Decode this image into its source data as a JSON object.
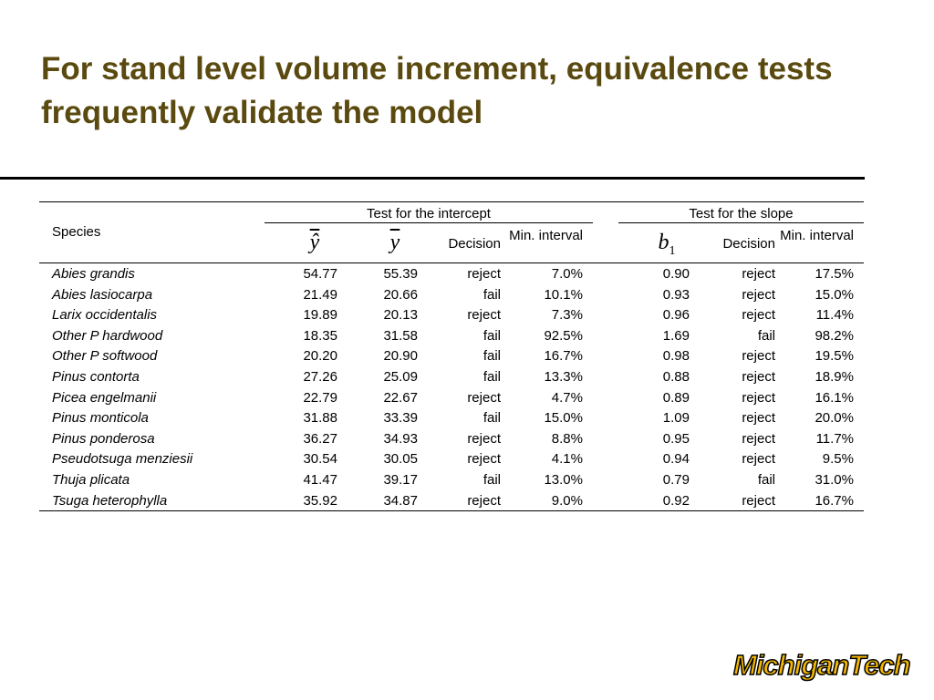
{
  "title": "For stand level volume increment, equivalence tests frequently validate the model",
  "table": {
    "species_header": "Species",
    "groups": [
      "Test for the intercept",
      "Test for the slope"
    ],
    "columns": [
      {
        "symbol": "ŷ"
      },
      {
        "symbol": "y"
      },
      {
        "label": "Decision"
      },
      {
        "label": "Min. interval"
      },
      {
        "symbol": "b",
        "subscript": "1"
      },
      {
        "label": "Decision"
      },
      {
        "label": "Min. interval"
      }
    ],
    "rows": [
      [
        "Abies grandis",
        "54.77",
        "55.39",
        "reject",
        "7.0%",
        "0.90",
        "reject",
        "17.5%"
      ],
      [
        "Abies lasiocarpa",
        "21.49",
        "20.66",
        "fail",
        "10.1%",
        "0.93",
        "reject",
        "15.0%"
      ],
      [
        "Larix occidentalis",
        "19.89",
        "20.13",
        "reject",
        "7.3%",
        "0.96",
        "reject",
        "11.4%"
      ],
      [
        "Other P hardwood",
        "18.35",
        "31.58",
        "fail",
        "92.5%",
        "1.69",
        "fail",
        "98.2%"
      ],
      [
        "Other P softwood",
        "20.20",
        "20.90",
        "fail",
        "16.7%",
        "0.98",
        "reject",
        "19.5%"
      ],
      [
        "Pinus contorta",
        "27.26",
        "25.09",
        "fail",
        "13.3%",
        "0.88",
        "reject",
        "18.9%"
      ],
      [
        "Picea engelmanii",
        "22.79",
        "22.67",
        "reject",
        "4.7%",
        "0.89",
        "reject",
        "16.1%"
      ],
      [
        "Pinus monticola",
        "31.88",
        "33.39",
        "fail",
        "15.0%",
        "1.09",
        "reject",
        "20.0%"
      ],
      [
        "Pinus ponderosa",
        "36.27",
        "34.93",
        "reject",
        "8.8%",
        "0.95",
        "reject",
        "11.7%"
      ],
      [
        "Pseudotsuga menziesii",
        "30.54",
        "30.05",
        "reject",
        "4.1%",
        "0.94",
        "reject",
        "9.5%"
      ],
      [
        "Thuja plicata",
        "41.47",
        "39.17",
        "fail",
        "13.0%",
        "0.79",
        "fail",
        "31.0%"
      ],
      [
        "Tsuga heterophylla",
        "35.92",
        "34.87",
        "reject",
        "9.0%",
        "0.92",
        "reject",
        "16.7%"
      ]
    ]
  },
  "logo": "MichiganTech"
}
